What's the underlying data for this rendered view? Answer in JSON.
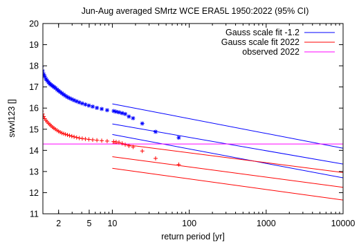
{
  "chart_data": {
    "type": "scatter",
    "title": "Jun-Aug averaged  SMrtz WCE ERA5L 1950:2022 (95% CI)",
    "xlabel": "return period [yr]",
    "ylabel": "swvl123 []",
    "xscale": "log",
    "xlim": [
      1.25,
      10000
    ],
    "ylim": [
      11,
      20
    ],
    "xticks": [
      {
        "value": 2,
        "label": "2"
      },
      {
        "value": 5,
        "label": "5"
      },
      {
        "value": 10,
        "label": "10"
      },
      {
        "value": 100,
        "label": "100"
      },
      {
        "value": 1000,
        "label": "1000"
      },
      {
        "value": 10000,
        "label": "10000"
      }
    ],
    "yticks": [
      11,
      12,
      13,
      14,
      15,
      16,
      17,
      18,
      19,
      20
    ],
    "grid": false,
    "legend_position": "top-right",
    "series": [
      {
        "name": "Gauss scale fit -1.2",
        "kind": "fit-band",
        "color": "#0000ff",
        "x": [
          10,
          10000
        ],
        "central": [
          15.25,
          13.35
        ],
        "upper": [
          16.2,
          14.1
        ],
        "lower": [
          14.75,
          12.7
        ]
      },
      {
        "name": "Gauss scale fit 2022",
        "kind": "fit-band",
        "color": "#ff0000",
        "x": [
          10,
          10000
        ],
        "central": [
          13.7,
          12.25
        ],
        "upper": [
          14.35,
          12.95
        ],
        "lower": [
          13.15,
          11.65
        ]
      },
      {
        "name": "observed 2022",
        "kind": "hline",
        "color": "#ff00ff",
        "y": 14.3
      },
      {
        "name": "",
        "kind": "points",
        "marker": "star",
        "color": "#0000ff",
        "x": [
          1.014,
          1.041,
          1.07,
          1.1,
          1.13,
          1.16,
          1.2,
          1.24,
          1.28,
          1.32,
          1.37,
          1.42,
          1.48,
          1.54,
          1.6,
          1.67,
          1.74,
          1.82,
          1.91,
          2.0,
          2.1,
          2.21,
          2.33,
          2.46,
          2.61,
          2.78,
          2.97,
          3.18,
          3.43,
          3.72,
          4.06,
          4.46,
          4.95,
          5.55,
          6.3,
          7.27,
          8.56,
          10.4,
          11.2,
          12.2,
          13.4,
          14.7,
          16.4,
          18.6,
          24.5,
          36.5,
          73
        ],
        "y": [
          19.95,
          19.5,
          19.1,
          18.6,
          18.35,
          18.15,
          17.95,
          17.75,
          17.6,
          17.5,
          17.38,
          17.3,
          17.22,
          17.15,
          17.1,
          17.05,
          17.0,
          16.95,
          16.88,
          16.82,
          16.76,
          16.7,
          16.64,
          16.58,
          16.52,
          16.47,
          16.42,
          16.37,
          16.32,
          16.27,
          16.22,
          16.17,
          16.12,
          16.07,
          16.01,
          15.96,
          15.9,
          15.86,
          15.83,
          15.8,
          15.76,
          15.72,
          15.6,
          15.52,
          15.27,
          14.88,
          14.6
        ]
      },
      {
        "name": "",
        "kind": "points",
        "marker": "plus",
        "color": "#ff0000",
        "x": [
          1.014,
          1.041,
          1.07,
          1.1,
          1.13,
          1.16,
          1.2,
          1.24,
          1.28,
          1.32,
          1.37,
          1.42,
          1.48,
          1.54,
          1.6,
          1.67,
          1.74,
          1.82,
          1.91,
          2.0,
          2.1,
          2.21,
          2.33,
          2.46,
          2.61,
          2.78,
          2.97,
          3.18,
          3.43,
          3.72,
          4.06,
          4.46,
          4.95,
          5.55,
          6.3,
          7.27,
          8.56,
          10.4,
          11.2,
          12.2,
          13.4,
          14.7,
          16.4,
          18.6,
          24.5,
          36.5,
          73
        ],
        "y": [
          17.4,
          17.1,
          16.8,
          16.45,
          16.2,
          16.0,
          15.85,
          15.72,
          15.6,
          15.5,
          15.42,
          15.35,
          15.28,
          15.22,
          15.16,
          15.1,
          15.05,
          15.0,
          14.95,
          14.9,
          14.86,
          14.82,
          14.79,
          14.76,
          14.73,
          14.7,
          14.67,
          14.64,
          14.61,
          14.58,
          14.56,
          14.54,
          14.52,
          14.5,
          14.48,
          14.46,
          14.44,
          14.42,
          14.4,
          14.38,
          14.33,
          14.27,
          14.21,
          14.16,
          13.97,
          13.62,
          13.33
        ]
      }
    ],
    "colors": {
      "blue": "#0000ff",
      "red": "#ff0000",
      "magenta": "#ff00ff",
      "axis": "#000000"
    }
  }
}
